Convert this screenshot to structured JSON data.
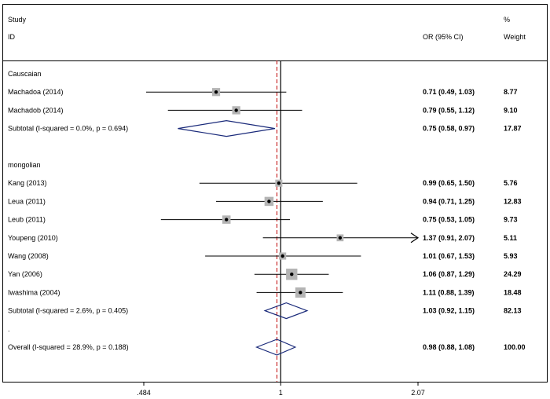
{
  "chart_data": {
    "type": "forest",
    "header": {
      "study_line1": "Study",
      "study_line2": "ID",
      "or_label": "OR (95% CI)",
      "weight_line1": "%",
      "weight_line2": "Weight"
    },
    "x_axis": {
      "scale": "log",
      "range": [
        0.484,
        2.07
      ],
      "ticks": [
        {
          "value": 0.484,
          "label": ".484"
        },
        {
          "value": 1,
          "label": "1"
        },
        {
          "value": 2.07,
          "label": "2.07"
        }
      ],
      "null_line": 1,
      "overall_line": 0.98
    },
    "rows": [
      {
        "kind": "group",
        "label": "Causcaian"
      },
      {
        "kind": "study",
        "label": "Machadoa (2014)",
        "or": 0.71,
        "lo": 0.49,
        "hi": 1.03,
        "ci_text": "0.71 (0.49, 1.03)",
        "weight": "8.77"
      },
      {
        "kind": "study",
        "label": "Machadob (2014)",
        "or": 0.79,
        "lo": 0.55,
        "hi": 1.12,
        "ci_text": "0.79 (0.55, 1.12)",
        "weight": "9.10"
      },
      {
        "kind": "subtotal",
        "label": "Subtotal  (I-squared = 0.0%, p = 0.694)",
        "or": 0.75,
        "lo": 0.58,
        "hi": 0.97,
        "ci_text": "0.75 (0.58, 0.97)",
        "weight": "17.87"
      },
      {
        "kind": "blank"
      },
      {
        "kind": "group",
        "label": "mongolian"
      },
      {
        "kind": "study",
        "label": "Kang (2013)",
        "or": 0.99,
        "lo": 0.65,
        "hi": 1.5,
        "ci_text": "0.99 (0.65, 1.50)",
        "weight": "5.76"
      },
      {
        "kind": "study",
        "label": "Leua (2011)",
        "or": 0.94,
        "lo": 0.71,
        "hi": 1.25,
        "ci_text": "0.94 (0.71, 1.25)",
        "weight": "12.83"
      },
      {
        "kind": "study",
        "label": "Leub (2011)",
        "or": 0.75,
        "lo": 0.53,
        "hi": 1.05,
        "ci_text": "0.75 (0.53, 1.05)",
        "weight": "9.73"
      },
      {
        "kind": "study",
        "label": "Youpeng (2010)",
        "or": 1.37,
        "lo": 0.91,
        "hi": 2.07,
        "ci_text": "1.37 (0.91, 2.07)",
        "weight": "5.11",
        "arrow": true
      },
      {
        "kind": "study",
        "label": "Wang (2008)",
        "or": 1.01,
        "lo": 0.67,
        "hi": 1.53,
        "ci_text": "1.01 (0.67, 1.53)",
        "weight": "5.93"
      },
      {
        "kind": "study",
        "label": "Yan (2006)",
        "or": 1.06,
        "lo": 0.87,
        "hi": 1.29,
        "ci_text": "1.06 (0.87, 1.29)",
        "weight": "24.29"
      },
      {
        "kind": "study",
        "label": "Iwashima (2004)",
        "or": 1.11,
        "lo": 0.88,
        "hi": 1.39,
        "ci_text": "1.11 (0.88, 1.39)",
        "weight": "18.48"
      },
      {
        "kind": "subtotal",
        "label": "Subtotal  (I-squared = 2.6%, p = 0.405)",
        "or": 1.03,
        "lo": 0.92,
        "hi": 1.15,
        "ci_text": "1.03 (0.92, 1.15)",
        "weight": "82.13"
      },
      {
        "kind": "group",
        "label": "."
      },
      {
        "kind": "subtotal",
        "label": "Overall  (I-squared = 28.9%, p = 0.188)",
        "or": 0.98,
        "lo": 0.88,
        "hi": 1.08,
        "ci_text": "0.98 (0.88, 1.08)",
        "weight": "100.00"
      }
    ],
    "colors": {
      "ci_line": "#000000",
      "weight_box": "#b4b4b4",
      "diamond": "#1a2a7a",
      "overall_line": "#c00000",
      "null_line": "#000000"
    }
  }
}
